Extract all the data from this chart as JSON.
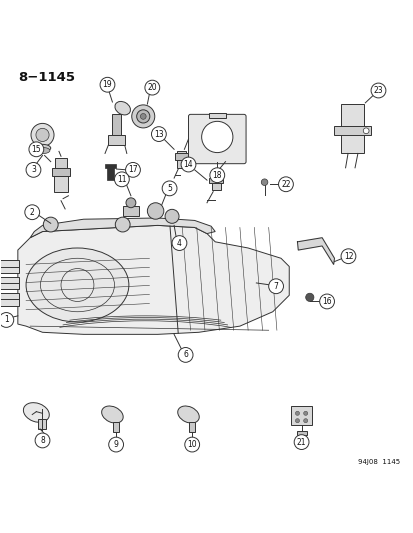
{
  "title": "8−1145",
  "footer": "94J08  1145",
  "bg_color": "#ffffff",
  "line_color": "#333333",
  "label_color": "#111111",
  "figsize": [
    4.14,
    5.33
  ],
  "dpi": 100
}
